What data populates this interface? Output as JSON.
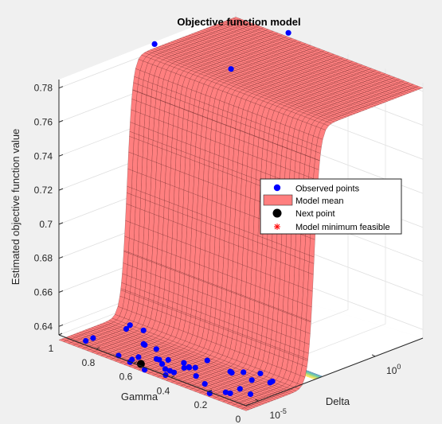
{
  "chart_data": {
    "type": "surface3d",
    "title": "Objective function model",
    "zlabel": "Estimated objective function value",
    "xlabel": "Gamma",
    "ylabel": "Delta",
    "z_ticks": [
      0.64,
      0.66,
      0.68,
      0.7,
      0.72,
      0.74,
      0.76,
      0.78
    ],
    "x_ticks": [
      {
        "label": "1",
        "value": 1
      },
      {
        "label": "0.8",
        "value": 0.8
      },
      {
        "label": "0.6",
        "value": 0.6
      },
      {
        "label": "0.4",
        "value": 0.4
      },
      {
        "label": "0.2",
        "value": 0.2
      },
      {
        "label": "0",
        "value": 0
      }
    ],
    "y_ticks": [
      {
        "base": "10",
        "exp": "-5"
      },
      {
        "base": "10",
        "exp": "0"
      }
    ],
    "zlim": [
      0.635,
      0.785
    ],
    "surface": {
      "low_plateau": 0.632,
      "high_plateau": 0.782,
      "color": "#ff7f7f",
      "edge_color": "#400000"
    },
    "legend": {
      "location": "east",
      "entries": [
        {
          "label": "Observed points",
          "marker": "circle",
          "color": "#0000ff"
        },
        {
          "label": "Model mean",
          "marker": "patch",
          "color": "#ff7f7f"
        },
        {
          "label": "Next point",
          "marker": "circle",
          "color": "#000000"
        },
        {
          "label": "Model minimum feasible",
          "marker": "asterisk",
          "color": "#ff0000"
        }
      ]
    },
    "series": [
      {
        "name": "Observed points",
        "count": 44
      },
      {
        "name": "Next point",
        "count": 1
      }
    ]
  }
}
